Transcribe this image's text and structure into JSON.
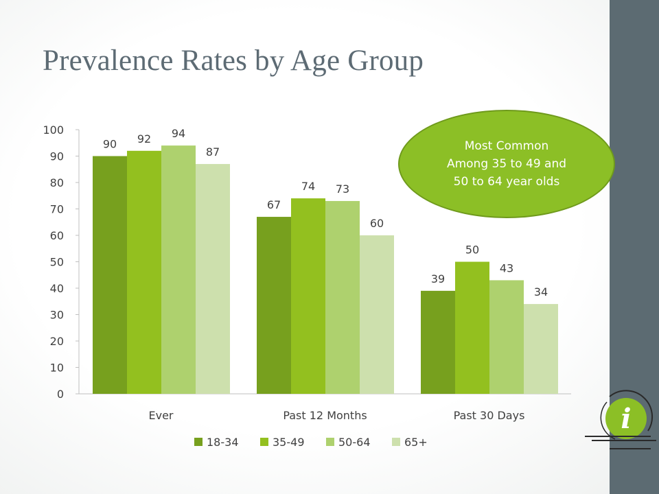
{
  "slide": {
    "title": "Prevalence Rates by Age Group",
    "callout_lines": [
      "Most Common",
      "Among 35 to 49 and",
      "50 to 64 year olds"
    ],
    "info_icon_glyph": "i"
  },
  "colors": {
    "side_panel": "#5c6b72",
    "title": "#5d6b74",
    "callout_fill": "#8cbf26",
    "icon_green": "#8cbf26"
  },
  "chart_data": {
    "type": "bar",
    "title": "",
    "xlabel": "",
    "ylabel": "",
    "categories": [
      "Ever",
      "Past 12 Months",
      "Past 30 Days"
    ],
    "series": [
      {
        "name": "18-34",
        "values": [
          90,
          67,
          39
        ],
        "color": "#77a01e"
      },
      {
        "name": "35-49",
        "values": [
          92,
          74,
          50
        ],
        "color": "#93c01f"
      },
      {
        "name": "50-64",
        "values": [
          94,
          73,
          43
        ],
        "color": "#aed16e"
      },
      {
        "name": "65+",
        "values": [
          87,
          60,
          34
        ],
        "color": "#cde0ad"
      }
    ],
    "ylim": [
      0,
      100
    ],
    "yticks": [
      0,
      10,
      20,
      30,
      40,
      50,
      60,
      70,
      80,
      90,
      100
    ],
    "grid": false,
    "data_labels": true,
    "legend": "bottom"
  }
}
